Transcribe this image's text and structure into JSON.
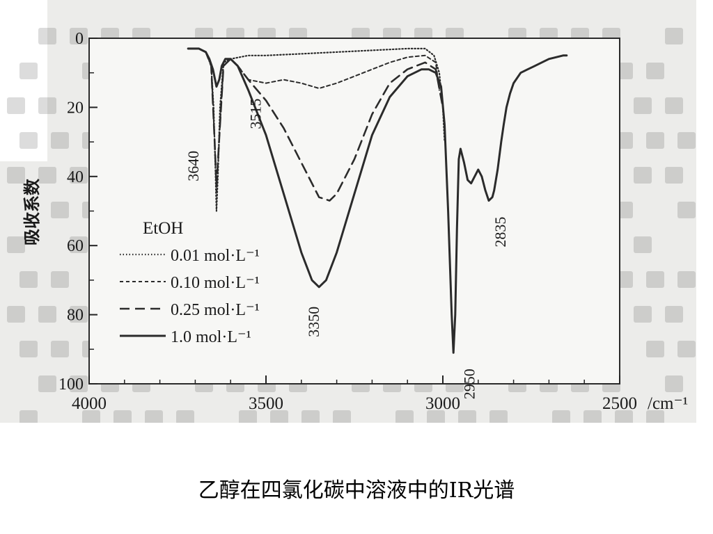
{
  "caption": "乙醇在四氯化碳中溶液中的IR光谱",
  "chart_data": {
    "type": "line",
    "xlabel": "/cm⁻¹",
    "ylabel": "吸收系数",
    "xlim": [
      4000,
      2500
    ],
    "ylim": [
      0,
      100
    ],
    "x_reversed": true,
    "y_inverted": true,
    "x_ticks": [
      4000,
      3500,
      3000,
      2500
    ],
    "y_ticks": [
      0,
      20,
      40,
      60,
      80,
      100
    ],
    "grid": false,
    "legend_title": "EtOH",
    "legend_position": "left-center",
    "series": [
      {
        "name": "0.01 mol·L⁻¹",
        "style": "dotted",
        "x": [
          3720,
          3690,
          3670,
          3655,
          3648,
          3643,
          3640,
          3636,
          3630,
          3620,
          3600,
          3550,
          3500,
          3400,
          3300,
          3200,
          3100,
          3050,
          3025,
          3010,
          3000,
          2995
        ],
        "y": [
          3,
          3,
          4,
          8,
          20,
          38,
          50,
          40,
          20,
          7,
          6,
          5,
          5,
          4.5,
          4,
          3.5,
          3,
          3,
          5,
          10,
          20,
          30
        ]
      },
      {
        "name": "0.10 mol·L⁻¹",
        "style": "short-dash",
        "x": [
          3720,
          3690,
          3670,
          3655,
          3645,
          3640,
          3630,
          3620,
          3600,
          3580,
          3550,
          3500,
          3450,
          3400,
          3350,
          3300,
          3250,
          3200,
          3150,
          3100,
          3050,
          3020,
          3010
        ],
        "y": [
          3,
          3,
          4,
          8,
          30,
          45,
          25,
          8,
          6,
          8,
          12,
          13,
          12,
          13,
          14.5,
          13,
          11,
          9,
          7,
          5.5,
          5,
          7,
          15
        ]
      },
      {
        "name": "0.25 mol·L⁻¹",
        "style": "dashed",
        "x": [
          3720,
          3690,
          3670,
          3655,
          3645,
          3640,
          3630,
          3620,
          3600,
          3580,
          3550,
          3500,
          3450,
          3400,
          3350,
          3320,
          3300,
          3250,
          3200,
          3150,
          3100,
          3050,
          3020,
          3000
        ],
        "y": [
          3,
          3,
          4,
          8,
          30,
          43,
          25,
          8,
          6,
          8,
          12,
          18,
          26,
          36,
          46,
          47,
          45,
          35,
          22,
          13,
          9,
          7,
          9,
          20
        ]
      },
      {
        "name": "1.0 mol·L⁻¹",
        "style": "solid",
        "x": [
          3720,
          3690,
          3670,
          3660,
          3650,
          3640,
          3632,
          3625,
          3615,
          3600,
          3580,
          3550,
          3500,
          3450,
          3400,
          3370,
          3350,
          3330,
          3300,
          3250,
          3200,
          3150,
          3100,
          3060,
          3040,
          3020,
          3005,
          2995,
          2985,
          2975,
          2970,
          2965,
          2960,
          2955,
          2950,
          2940,
          2930,
          2920,
          2910,
          2900,
          2890,
          2880,
          2870,
          2860,
          2855,
          2845,
          2835,
          2828,
          2820,
          2810,
          2800,
          2780,
          2760,
          2740,
          2720,
          2700,
          2680,
          2660,
          2650
        ],
        "y": [
          3,
          3,
          4,
          6,
          9,
          14,
          12,
          8,
          6,
          6,
          8,
          15,
          28,
          45,
          62,
          70,
          72,
          70,
          62,
          45,
          28,
          17,
          11,
          9,
          9,
          10,
          14,
          25,
          50,
          80,
          91,
          80,
          55,
          35,
          32,
          36,
          41,
          42,
          40,
          38,
          40,
          44,
          47,
          46,
          44,
          38,
          30,
          25,
          20,
          16,
          13,
          10,
          9,
          8,
          7,
          6,
          5.5,
          5,
          5
        ]
      }
    ],
    "annotations": [
      {
        "text": "3640",
        "x": 3640,
        "y": 43
      },
      {
        "text": "3515",
        "x": 3515,
        "y": 15
      },
      {
        "text": "3350",
        "x": 3350,
        "y": 74
      },
      {
        "text": "2950",
        "x": 2950,
        "y": 92
      },
      {
        "text": "2835",
        "x": 2835,
        "y": 48
      }
    ]
  }
}
